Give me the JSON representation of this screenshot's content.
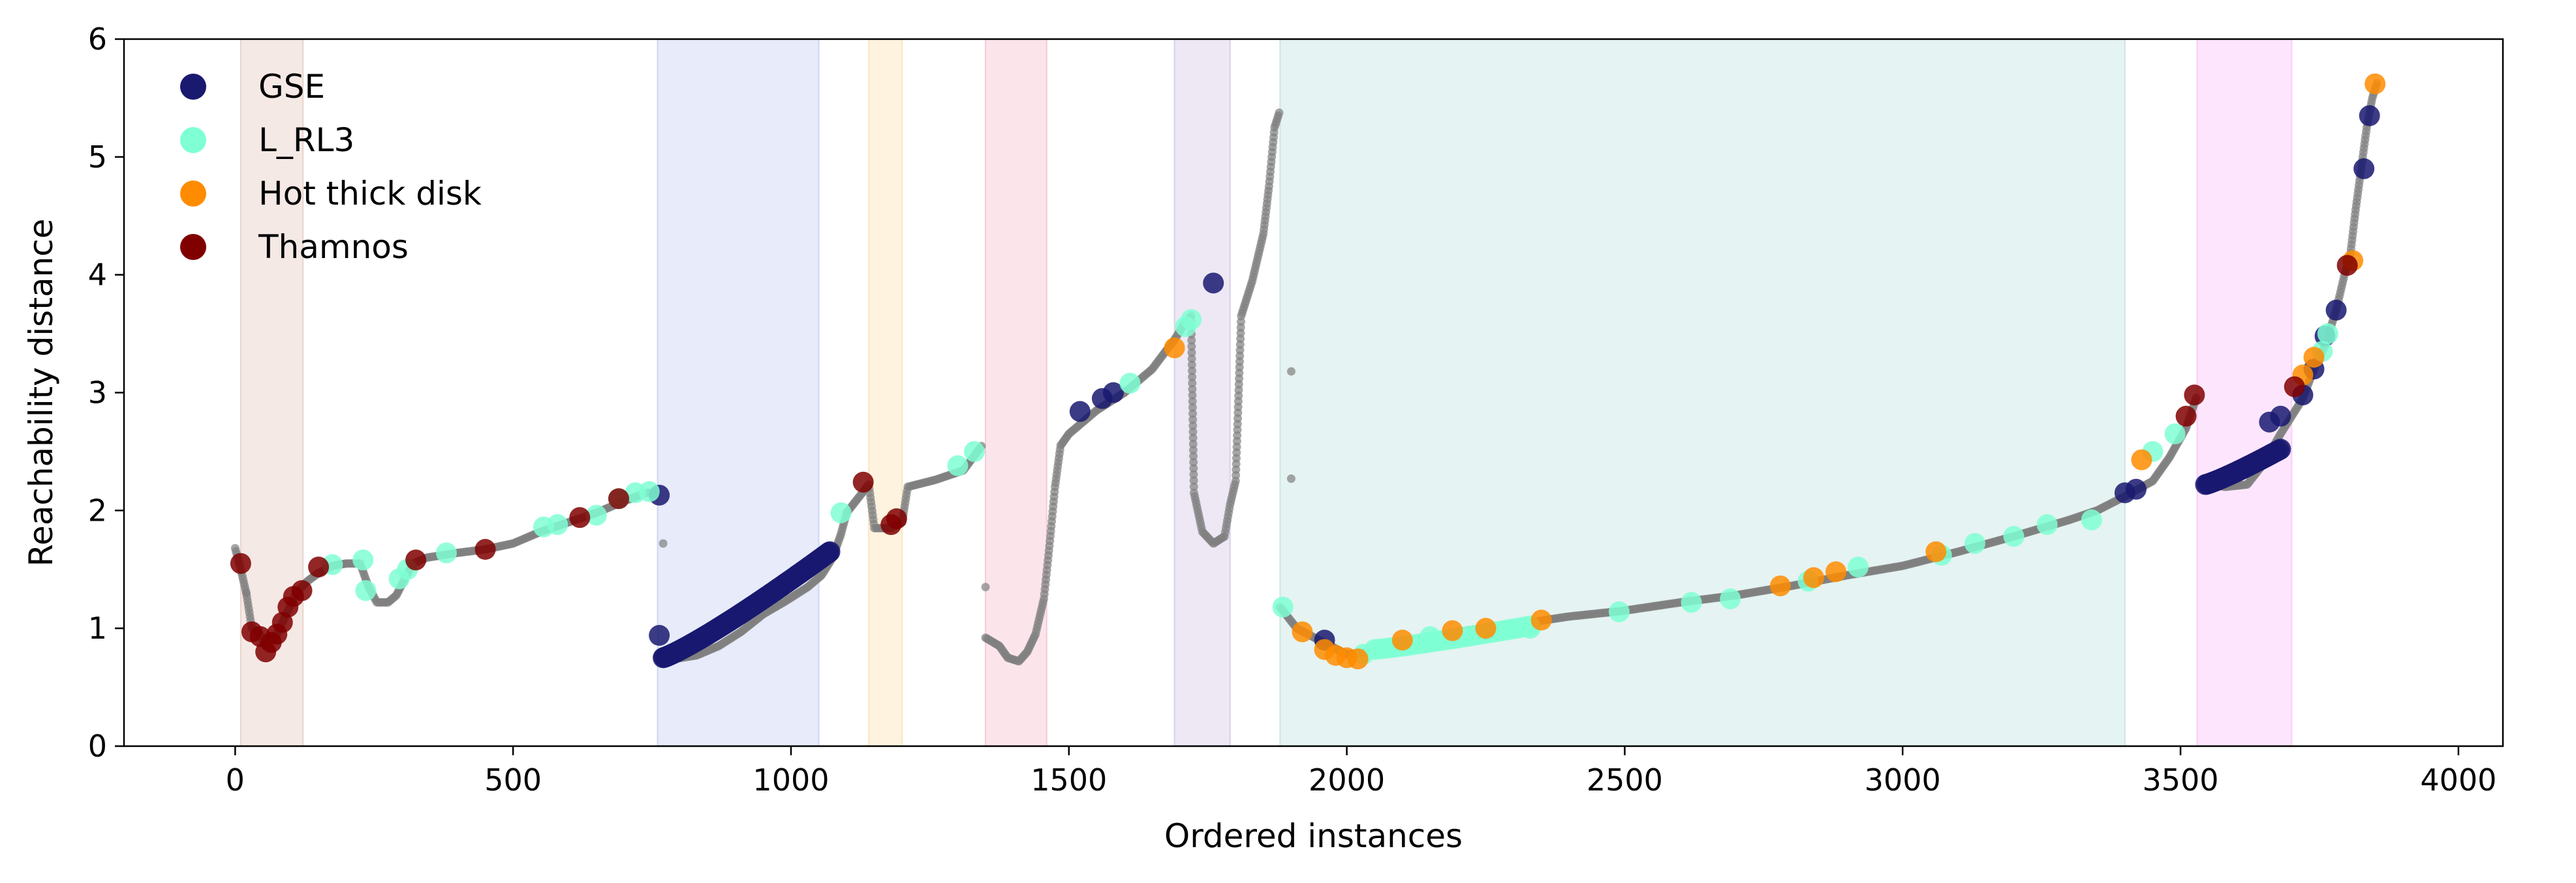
{
  "chart_data": {
    "type": "scatter",
    "title": "",
    "xlabel": "Ordered instances",
    "ylabel": "Reachability distance",
    "xlim": [
      -200,
      4080
    ],
    "ylim": [
      0,
      6
    ],
    "xticks": [
      0,
      500,
      1000,
      1500,
      2000,
      2500,
      3000,
      3500,
      4000
    ],
    "yticks": [
      0,
      1,
      2,
      3,
      4,
      5,
      6
    ],
    "grid": false,
    "legend_position": "top-left",
    "background_color": "#808080",
    "shaded_regions": [
      {
        "x": [
          10,
          122
        ],
        "color": "#e8cfc7"
      },
      {
        "x": [
          760,
          1050
        ],
        "color": "#c9d3f4"
      },
      {
        "x": [
          1140,
          1200
        ],
        "color": "#fbe4b8"
      },
      {
        "x": [
          1350,
          1460
        ],
        "color": "#f7c5d3"
      },
      {
        "x": [
          1690,
          1790
        ],
        "color": "#d6cde6"
      },
      {
        "x": [
          1880,
          3400
        ],
        "color": "#c5e4e2"
      },
      {
        "x": [
          3530,
          3700
        ],
        "color": "#fbc8fb"
      }
    ],
    "background_segments": [
      [
        [
          0,
          1.68
        ],
        [
          10,
          1.5
        ],
        [
          20,
          1.3
        ],
        [
          30,
          1.0
        ],
        [
          45,
          0.95
        ],
        [
          55,
          0.85
        ],
        [
          75,
          0.95
        ],
        [
          95,
          1.15
        ],
        [
          110,
          1.3
        ],
        [
          130,
          1.4
        ],
        [
          150,
          1.47
        ],
        [
          175,
          1.53
        ],
        [
          200,
          1.55
        ],
        [
          225,
          1.55
        ],
        [
          240,
          1.35
        ],
        [
          255,
          1.22
        ],
        [
          275,
          1.22
        ],
        [
          290,
          1.28
        ],
        [
          305,
          1.42
        ],
        [
          320,
          1.55
        ],
        [
          345,
          1.6
        ],
        [
          400,
          1.64
        ],
        [
          450,
          1.67
        ],
        [
          500,
          1.72
        ],
        [
          550,
          1.82
        ],
        [
          600,
          1.9
        ],
        [
          650,
          1.98
        ],
        [
          700,
          2.08
        ],
        [
          740,
          2.15
        ],
        [
          760,
          2.15
        ]
      ],
      [
        [
          760,
          0.76
        ],
        [
          790,
          0.74
        ],
        [
          830,
          0.77
        ],
        [
          870,
          0.85
        ],
        [
          910,
          0.97
        ],
        [
          950,
          1.12
        ],
        [
          990,
          1.23
        ],
        [
          1030,
          1.35
        ],
        [
          1055,
          1.45
        ],
        [
          1075,
          1.6
        ],
        [
          1090,
          1.8
        ],
        [
          1100,
          1.98
        ],
        [
          1120,
          2.1
        ],
        [
          1140,
          2.22
        ],
        [
          1150,
          1.85
        ],
        [
          1180,
          1.85
        ],
        [
          1200,
          1.9
        ],
        [
          1210,
          2.2
        ],
        [
          1260,
          2.26
        ],
        [
          1310,
          2.34
        ],
        [
          1345,
          2.56
        ]
      ],
      [
        [
          1350,
          0.92
        ],
        [
          1375,
          0.85
        ],
        [
          1390,
          0.75
        ],
        [
          1410,
          0.72
        ],
        [
          1425,
          0.8
        ],
        [
          1440,
          0.95
        ],
        [
          1455,
          1.25
        ],
        [
          1465,
          1.7
        ],
        [
          1475,
          2.2
        ],
        [
          1485,
          2.55
        ],
        [
          1500,
          2.65
        ],
        [
          1550,
          2.85
        ],
        [
          1600,
          3.0
        ],
        [
          1650,
          3.2
        ],
        [
          1690,
          3.45
        ],
        [
          1710,
          3.6
        ],
        [
          1720,
          3.65
        ],
        [
          1725,
          2.15
        ],
        [
          1740,
          1.82
        ],
        [
          1760,
          1.72
        ],
        [
          1780,
          1.78
        ],
        [
          1790,
          2.05
        ],
        [
          1800,
          2.25
        ],
        [
          1810,
          3.65
        ],
        [
          1830,
          3.95
        ],
        [
          1840,
          4.15
        ],
        [
          1850,
          4.35
        ],
        [
          1860,
          4.75
        ],
        [
          1870,
          5.25
        ],
        [
          1880,
          5.4
        ]
      ],
      [
        [
          1880,
          1.18
        ],
        [
          1910,
          1.0
        ],
        [
          1950,
          0.9
        ],
        [
          2000,
          0.78
        ],
        [
          2050,
          0.8
        ],
        [
          2100,
          0.87
        ],
        [
          2200,
          0.97
        ],
        [
          2300,
          1.03
        ],
        [
          2400,
          1.1
        ],
        [
          2500,
          1.15
        ],
        [
          2600,
          1.22
        ],
        [
          2700,
          1.28
        ],
        [
          2800,
          1.36
        ],
        [
          2900,
          1.45
        ],
        [
          3000,
          1.53
        ],
        [
          3100,
          1.65
        ],
        [
          3200,
          1.78
        ],
        [
          3300,
          1.92
        ],
        [
          3350,
          2.0
        ],
        [
          3400,
          2.12
        ],
        [
          3450,
          2.25
        ],
        [
          3480,
          2.45
        ],
        [
          3510,
          2.7
        ],
        [
          3530,
          2.98
        ]
      ],
      [
        [
          3545,
          2.23
        ],
        [
          3580,
          2.2
        ],
        [
          3620,
          2.22
        ],
        [
          3650,
          2.4
        ],
        [
          3680,
          2.65
        ],
        [
          3700,
          2.8
        ],
        [
          3720,
          2.95
        ],
        [
          3740,
          3.2
        ],
        [
          3760,
          3.4
        ],
        [
          3780,
          3.7
        ],
        [
          3795,
          4.0
        ],
        [
          3805,
          4.15
        ],
        [
          3815,
          4.55
        ],
        [
          3825,
          4.9
        ],
        [
          3835,
          5.25
        ],
        [
          3845,
          5.5
        ],
        [
          3855,
          5.65
        ]
      ]
    ],
    "background_isolated": [
      {
        "x": 1350,
        "y": 1.35
      },
      {
        "x": 1900,
        "y": 3.18
      },
      {
        "x": 1900,
        "y": 2.27
      },
      {
        "x": 770,
        "y": 1.72
      },
      {
        "x": 20,
        "y": 1.3
      }
    ],
    "series": [
      {
        "name": "GSE",
        "color": "#191970",
        "points": [
          {
            "x": 763,
            "y": 2.13
          },
          {
            "x": 763,
            "y": 0.94
          },
          {
            "x": 1760,
            "y": 3.93
          },
          {
            "x": 1520,
            "y": 2.84
          },
          {
            "x": 1560,
            "y": 2.95
          },
          {
            "x": 1580,
            "y": 3.0
          },
          {
            "x": 1960,
            "y": 0.9
          },
          {
            "x": 3400,
            "y": 2.15
          },
          {
            "x": 3420,
            "y": 2.18
          },
          {
            "x": 3780,
            "y": 3.7
          },
          {
            "x": 3830,
            "y": 4.9
          },
          {
            "x": 3840,
            "y": 5.35
          },
          {
            "x": 3760,
            "y": 3.48
          },
          {
            "x": 3660,
            "y": 2.75
          },
          {
            "x": 3680,
            "y": 2.8
          },
          {
            "x": 3720,
            "y": 2.98
          },
          {
            "x": 3740,
            "y": 3.2
          }
        ],
        "segments": [
          {
            "from": [
              770,
              0.75
            ],
            "to": [
              1070,
              1.65
            ],
            "count": 160
          },
          {
            "from": [
              3545,
              2.22
            ],
            "to": [
              3680,
              2.52
            ],
            "count": 50
          }
        ]
      },
      {
        "name": "L_RL3",
        "color": "#7fffd4",
        "points": [
          {
            "x": 175,
            "y": 1.54
          },
          {
            "x": 230,
            "y": 1.58
          },
          {
            "x": 235,
            "y": 1.32
          },
          {
            "x": 295,
            "y": 1.42
          },
          {
            "x": 310,
            "y": 1.5
          },
          {
            "x": 380,
            "y": 1.64
          },
          {
            "x": 555,
            "y": 1.86
          },
          {
            "x": 580,
            "y": 1.88
          },
          {
            "x": 650,
            "y": 1.96
          },
          {
            "x": 690,
            "y": 2.1
          },
          {
            "x": 720,
            "y": 2.15
          },
          {
            "x": 745,
            "y": 2.16
          },
          {
            "x": 1090,
            "y": 1.98
          },
          {
            "x": 1300,
            "y": 2.38
          },
          {
            "x": 1330,
            "y": 2.5
          },
          {
            "x": 1610,
            "y": 3.08
          },
          {
            "x": 1710,
            "y": 3.56
          },
          {
            "x": 1720,
            "y": 3.62
          },
          {
            "x": 1885,
            "y": 1.18
          },
          {
            "x": 2030,
            "y": 0.78
          },
          {
            "x": 2150,
            "y": 0.93
          },
          {
            "x": 2330,
            "y": 1.0
          },
          {
            "x": 2490,
            "y": 1.14
          },
          {
            "x": 2620,
            "y": 1.22
          },
          {
            "x": 2690,
            "y": 1.25
          },
          {
            "x": 2830,
            "y": 1.4
          },
          {
            "x": 2920,
            "y": 1.52
          },
          {
            "x": 3070,
            "y": 1.62
          },
          {
            "x": 3130,
            "y": 1.72
          },
          {
            "x": 3200,
            "y": 1.78
          },
          {
            "x": 3260,
            "y": 1.88
          },
          {
            "x": 3340,
            "y": 1.92
          },
          {
            "x": 3450,
            "y": 2.5
          },
          {
            "x": 3490,
            "y": 2.65
          },
          {
            "x": 3755,
            "y": 3.35
          },
          {
            "x": 3765,
            "y": 3.5
          }
        ],
        "segments": [
          {
            "from": [
              2050,
              0.82
            ],
            "to": [
              2330,
              1.02
            ],
            "count": 28
          }
        ]
      },
      {
        "name": "Hot thick disk",
        "color": "#ff8c00",
        "points": [
          {
            "x": 1690,
            "y": 3.38
          },
          {
            "x": 1920,
            "y": 0.97
          },
          {
            "x": 1960,
            "y": 0.82
          },
          {
            "x": 1980,
            "y": 0.77
          },
          {
            "x": 2000,
            "y": 0.75
          },
          {
            "x": 2020,
            "y": 0.74
          },
          {
            "x": 2100,
            "y": 0.9
          },
          {
            "x": 2190,
            "y": 0.98
          },
          {
            "x": 2250,
            "y": 1.0
          },
          {
            "x": 2350,
            "y": 1.07
          },
          {
            "x": 2780,
            "y": 1.36
          },
          {
            "x": 2840,
            "y": 1.43
          },
          {
            "x": 2880,
            "y": 1.48
          },
          {
            "x": 3060,
            "y": 1.65
          },
          {
            "x": 3430,
            "y": 2.43
          },
          {
            "x": 3720,
            "y": 3.15
          },
          {
            "x": 3740,
            "y": 3.3
          },
          {
            "x": 3810,
            "y": 4.12
          },
          {
            "x": 3850,
            "y": 5.62
          }
        ]
      },
      {
        "name": "Thamnos",
        "color": "#800000",
        "points": [
          {
            "x": 10,
            "y": 1.55
          },
          {
            "x": 30,
            "y": 0.97
          },
          {
            "x": 45,
            "y": 0.93
          },
          {
            "x": 55,
            "y": 0.8
          },
          {
            "x": 65,
            "y": 0.88
          },
          {
            "x": 75,
            "y": 0.95
          },
          {
            "x": 85,
            "y": 1.05
          },
          {
            "x": 95,
            "y": 1.18
          },
          {
            "x": 105,
            "y": 1.27
          },
          {
            "x": 120,
            "y": 1.32
          },
          {
            "x": 150,
            "y": 1.52
          },
          {
            "x": 325,
            "y": 1.58
          },
          {
            "x": 450,
            "y": 1.67
          },
          {
            "x": 620,
            "y": 1.94
          },
          {
            "x": 690,
            "y": 2.1
          },
          {
            "x": 1130,
            "y": 2.24
          },
          {
            "x": 1180,
            "y": 1.88
          },
          {
            "x": 1190,
            "y": 1.93
          },
          {
            "x": 3510,
            "y": 2.8
          },
          {
            "x": 3525,
            "y": 2.98
          },
          {
            "x": 3705,
            "y": 3.05
          },
          {
            "x": 3800,
            "y": 4.08
          }
        ]
      }
    ]
  }
}
